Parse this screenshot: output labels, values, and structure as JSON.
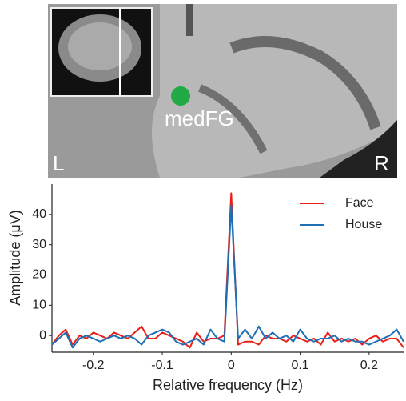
{
  "image": {
    "region_label": "medFG",
    "left_label": "L",
    "right_label": "R"
  },
  "chart_data": {
    "type": "line",
    "x_label": "Relative frequency (Hz)",
    "y_label": "Amplitude (μV)",
    "x": [
      -0.26,
      -0.25,
      -0.24,
      -0.23,
      -0.22,
      -0.21,
      -0.2,
      -0.19,
      -0.18,
      -0.17,
      -0.16,
      -0.15,
      -0.14,
      -0.13,
      -0.12,
      -0.11,
      -0.1,
      -0.09,
      -0.08,
      -0.07,
      -0.06,
      -0.05,
      -0.04,
      -0.03,
      -0.02,
      -0.01,
      0,
      0.01,
      0.02,
      0.03,
      0.04,
      0.05,
      0.06,
      0.07,
      0.08,
      0.09,
      0.1,
      0.11,
      0.12,
      0.13,
      0.14,
      0.15,
      0.16,
      0.17,
      0.18,
      0.19,
      0.2,
      0.21,
      0.22,
      0.23,
      0.24,
      0.25
    ],
    "series": [
      {
        "name": "Face",
        "color": "#e8201c",
        "values": [
          -3,
          0,
          2,
          -3,
          0,
          -1,
          1,
          0,
          -1,
          1,
          0,
          -1,
          1,
          3,
          -1,
          -1,
          1,
          0,
          -1,
          -2,
          -4,
          1,
          -2,
          -1,
          -1,
          0,
          47,
          -3,
          -2,
          -2,
          -3,
          0,
          -1,
          -1,
          -2,
          0,
          -1,
          -2,
          -1,
          -3,
          1,
          -2,
          -1,
          -2,
          -1,
          -3,
          -1,
          0,
          -2,
          -1,
          -1,
          -4
        ]
      },
      {
        "name": "House",
        "color": "#1f6fb4",
        "values": [
          -3,
          -1,
          1,
          -4,
          -1,
          0,
          -1,
          -2,
          -1,
          0,
          -1,
          0,
          -1,
          -3,
          0,
          1,
          2,
          1,
          -2,
          -3,
          -2,
          -1,
          -3,
          2,
          -1,
          -2,
          43,
          -1,
          2,
          -1,
          3,
          -1,
          1,
          -1,
          0,
          -2,
          2,
          -1,
          -2,
          -1,
          -1,
          0,
          -2,
          -1,
          -2,
          -2,
          -3,
          -2,
          -1,
          0,
          2,
          -2
        ]
      }
    ],
    "xlim": [
      -0.26,
      0.25
    ],
    "ylim": [
      -5.5,
      50
    ],
    "xticks": [
      -0.2,
      -0.1,
      0,
      0.1,
      0.2
    ],
    "yticks": [
      0,
      10,
      20,
      30,
      40
    ],
    "grid": false,
    "legend": "upper right"
  }
}
